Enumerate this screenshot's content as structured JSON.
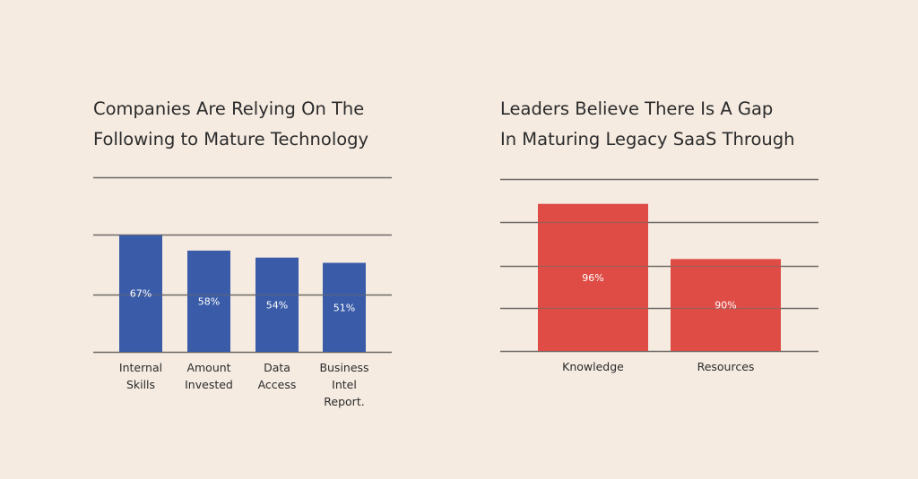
{
  "charts": {
    "left": {
      "title": "Companies Are Relying On The\nFollowing to Mature Technology"
    },
    "right": {
      "title": "Leaders Believe There Is A Gap\nIn Maturing  Legacy SaaS Through"
    }
  },
  "chart_data": [
    {
      "type": "bar",
      "title": "Companies Are Relying On The Following to Mature Technology",
      "categories": [
        "Internal Skills",
        "Amount Invested",
        "Data Access",
        "Business Intel Report."
      ],
      "category_lines": [
        [
          "Internal",
          "Skills"
        ],
        [
          "Amount",
          "Invested"
        ],
        [
          "Data",
          "Access"
        ],
        [
          "Business",
          "Intel",
          "Report."
        ]
      ],
      "values": [
        67,
        58,
        54,
        51
      ],
      "value_labels": [
        "67%",
        "58%",
        "54%",
        "51%"
      ],
      "unit": "%",
      "ylim": [
        0,
        100
      ],
      "gridlines": [
        0,
        33,
        67,
        100
      ],
      "grid": true,
      "bar_color": "#3a5ca8",
      "grid_color": "#6f6a66"
    },
    {
      "type": "bar",
      "title": "Leaders Believe There Is A Gap In Maturing  Legacy SaaS Through",
      "categories": [
        "Knowledge",
        "Resources"
      ],
      "category_lines": [
        [
          "Knowledge"
        ],
        [
          "Resources"
        ]
      ],
      "values": [
        96,
        90
      ],
      "value_labels": [
        "96%",
        "90%"
      ],
      "unit": "%",
      "ylim": [
        80,
        98.7
      ],
      "gridlines": [
        80,
        84.7,
        89.3,
        94,
        98.7
      ],
      "grid": true,
      "bar_color": "#de4c45",
      "grid_color": "#6f6a66"
    }
  ]
}
